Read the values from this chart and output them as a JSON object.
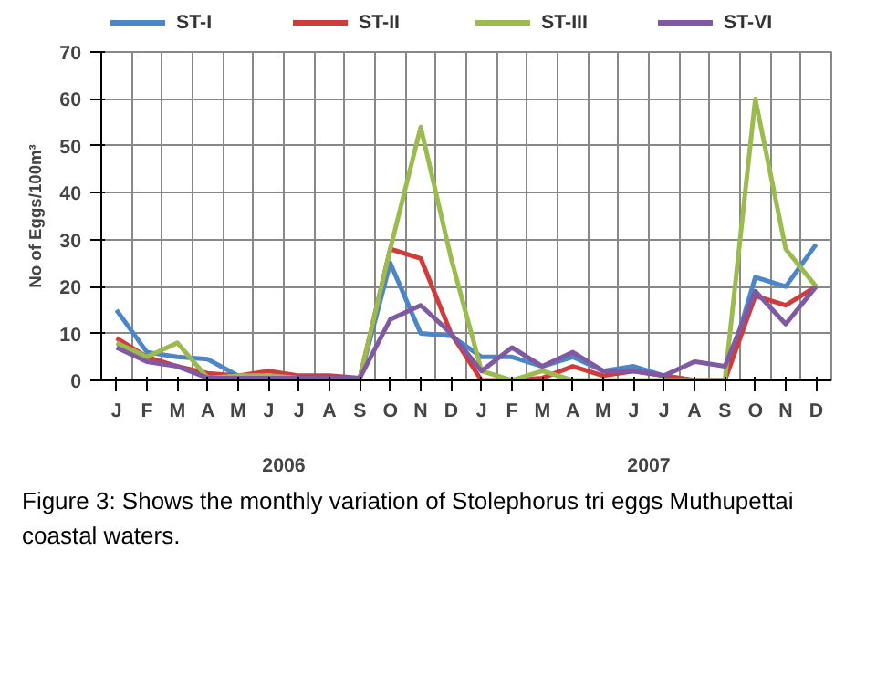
{
  "chart_data": {
    "type": "line",
    "ylabel": "No of Eggs/100m³",
    "categories": [
      "J",
      "F",
      "M",
      "A",
      "M",
      "J",
      "J",
      "A",
      "S",
      "O",
      "N",
      "D",
      "J",
      "F",
      "M",
      "A",
      "M",
      "J",
      "J",
      "A",
      "S",
      "O",
      "N",
      "D"
    ],
    "series": [
      {
        "name": "ST-I",
        "color": "#4a86c8",
        "values": [
          15,
          6,
          5,
          4.5,
          1,
          0.5,
          0.5,
          0.5,
          0.5,
          25,
          10,
          9.5,
          5,
          5,
          3,
          5,
          2,
          3,
          1,
          0,
          0,
          22,
          20,
          29
        ]
      },
      {
        "name": "ST-II",
        "color": "#d03c3c",
        "values": [
          9,
          5,
          3,
          1.5,
          1,
          2,
          1,
          1,
          0.5,
          28,
          26,
          10,
          0,
          0,
          0.5,
          3,
          1,
          2,
          1,
          0,
          0,
          18,
          16,
          20
        ]
      },
      {
        "name": "ST-III",
        "color": "#9bbb4f",
        "values": [
          8,
          5,
          8,
          0.5,
          1,
          1,
          0.5,
          0.5,
          0.5,
          28,
          54,
          26,
          2,
          0,
          2,
          0,
          0,
          0,
          0,
          0,
          0,
          60,
          28,
          20
        ]
      },
      {
        "name": "ST-VI",
        "color": "#7f5aa3",
        "values": [
          7,
          4,
          3,
          0.5,
          0.5,
          0.5,
          0.5,
          0.5,
          0.5,
          13,
          16,
          10,
          2,
          7,
          3,
          6,
          2,
          2,
          1,
          4,
          3,
          19,
          12,
          20
        ]
      }
    ],
    "ylim": [
      0,
      70
    ],
    "yticks": [
      0,
      10,
      20,
      30,
      40,
      50,
      60,
      70
    ],
    "grid": true,
    "legend": "top",
    "marker": "none",
    "line_style": "solid",
    "annotations": [
      "2006",
      "2007",
      "Figure 3: Shows the monthly variation of Stolephorus tri eggs Muthupettai coastal waters."
    ]
  }
}
